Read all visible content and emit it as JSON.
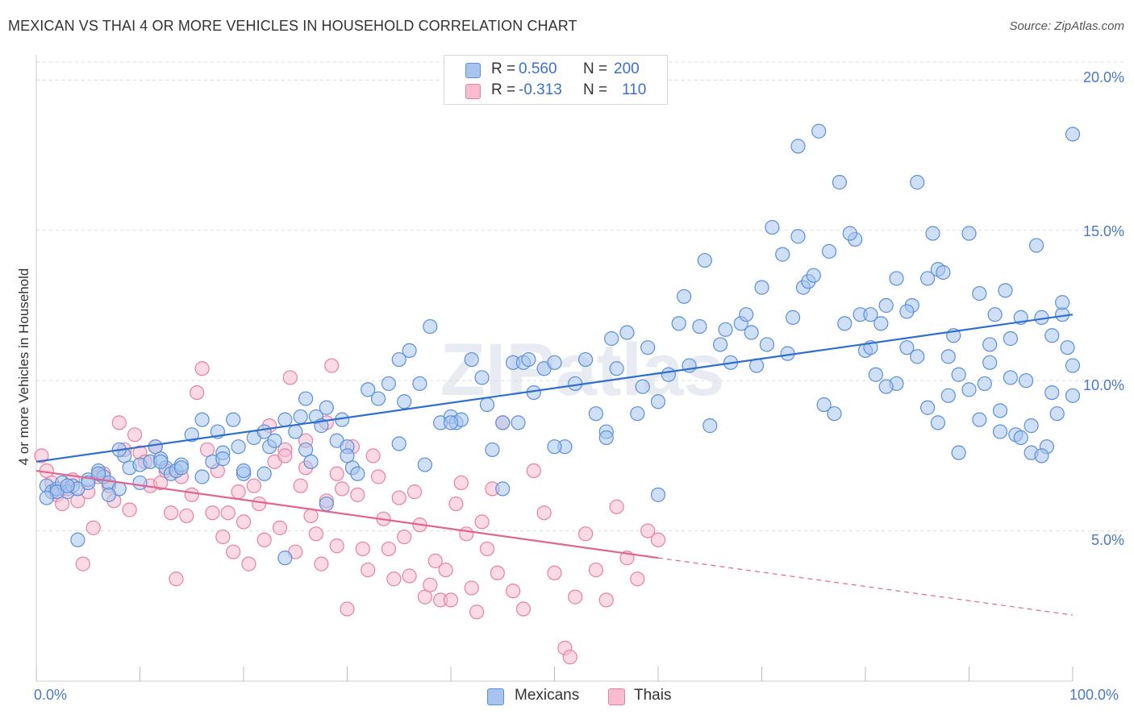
{
  "header": {
    "title": "MEXICAN VS THAI 4 OR MORE VEHICLES IN HOUSEHOLD CORRELATION CHART",
    "source": "Source: ZipAtlas.com"
  },
  "watermark": "ZIPatlas",
  "legend": {
    "rows": [
      {
        "r_label": "R =",
        "r_value": "0.560",
        "n_label": "N =",
        "n_value": "200"
      },
      {
        "r_label": "R =",
        "r_value": "-0.313",
        "n_label": "N =",
        "n_value": "110"
      }
    ]
  },
  "bottom_legend": {
    "items": [
      "Mexicans",
      "Thais"
    ]
  },
  "colors": {
    "mexicans_fill": "#a8c4ee",
    "mexicans_stroke": "#5b8fd8",
    "mexicans_line": "#2f6fcc",
    "thais_fill": "#f7bcd0",
    "thais_stroke": "#e87fa4",
    "thais_line": "#e0668f",
    "grid": "#dcdcdc",
    "tick_text": "#4a78c8"
  },
  "chart_data": {
    "type": "scatter",
    "title": "MEXICAN VS THAI 4 OR MORE VEHICLES IN HOUSEHOLD CORRELATION CHART",
    "xlabel": "",
    "ylabel": "4 or more Vehicles in Household",
    "xlim": [
      0,
      100
    ],
    "ylim": [
      0,
      20.6
    ],
    "x_tick_labels": [
      "0.0%",
      "100.0%"
    ],
    "y_ticks": [
      5,
      10,
      15,
      20
    ],
    "y_tick_labels": [
      "5.0%",
      "10.0%",
      "15.0%",
      "20.0%"
    ],
    "grid": true,
    "series": [
      {
        "name": "Mexicans",
        "R": 0.56,
        "N": 200,
        "trend": {
          "x0": 0,
          "y0": 7.3,
          "x1": 100,
          "y1": 12.2
        },
        "points": [
          [
            1,
            6.5
          ],
          [
            1.5,
            6.3
          ],
          [
            2,
            6.4
          ],
          [
            2.5,
            6.6
          ],
          [
            3,
            6.3
          ],
          [
            3.5,
            6.5
          ],
          [
            4,
            4.7
          ],
          [
            5,
            6.7
          ],
          [
            6,
            7
          ],
          [
            6.5,
            6.8
          ],
          [
            7,
            6.6
          ],
          [
            8,
            6.4
          ],
          [
            8.5,
            7.5
          ],
          [
            9,
            7.1
          ],
          [
            10,
            7.2
          ],
          [
            11,
            7.3
          ],
          [
            11.5,
            7.8
          ],
          [
            12,
            7.4
          ],
          [
            12.5,
            7.1
          ],
          [
            13,
            6.9
          ],
          [
            13.5,
            7
          ],
          [
            14,
            7.2
          ],
          [
            15,
            8.2
          ],
          [
            16,
            8.7
          ],
          [
            17,
            7.3
          ],
          [
            17.5,
            8.3
          ],
          [
            18,
            7.6
          ],
          [
            19,
            8.7
          ],
          [
            19.5,
            7.8
          ],
          [
            20,
            6.9
          ],
          [
            21,
            8.1
          ],
          [
            22,
            8.3
          ],
          [
            22.5,
            7.8
          ],
          [
            23,
            8
          ],
          [
            24,
            8.7
          ],
          [
            25,
            8.3
          ],
          [
            25.5,
            8.8
          ],
          [
            26,
            7.7
          ],
          [
            26.5,
            7.3
          ],
          [
            27,
            8.8
          ],
          [
            27.5,
            8.5
          ],
          [
            28,
            9.1
          ],
          [
            29,
            8
          ],
          [
            29.5,
            8.7
          ],
          [
            30,
            7.8
          ],
          [
            30.5,
            7.1
          ],
          [
            31,
            6.9
          ],
          [
            32,
            9.7
          ],
          [
            33,
            9.4
          ],
          [
            34,
            9.9
          ],
          [
            35,
            10.7
          ],
          [
            35.5,
            9.3
          ],
          [
            36,
            11
          ],
          [
            37,
            9.9
          ],
          [
            37.5,
            7.2
          ],
          [
            38,
            11.8
          ],
          [
            39,
            8.6
          ],
          [
            40,
            8.8
          ],
          [
            40.5,
            8.6
          ],
          [
            41,
            8.7
          ],
          [
            42,
            10.7
          ],
          [
            43,
            10.1
          ],
          [
            43.5,
            9.2
          ],
          [
            44,
            7.7
          ],
          [
            45,
            8.6
          ],
          [
            46,
            10.6
          ],
          [
            46.5,
            8.6
          ],
          [
            47,
            10.6
          ],
          [
            47.5,
            10.7
          ],
          [
            48,
            9.6
          ],
          [
            49,
            10.4
          ],
          [
            50,
            10.6
          ],
          [
            51,
            7.8
          ],
          [
            52,
            9.9
          ],
          [
            53,
            10.7
          ],
          [
            54,
            8.9
          ],
          [
            55,
            8.3
          ],
          [
            55.5,
            11.4
          ],
          [
            56,
            10.4
          ],
          [
            57,
            11.6
          ],
          [
            58,
            8.9
          ],
          [
            58.5,
            9.8
          ],
          [
            59,
            11.1
          ],
          [
            60,
            9.3
          ],
          [
            61,
            10.2
          ],
          [
            62,
            11.9
          ],
          [
            62.5,
            12.8
          ],
          [
            63,
            10.5
          ],
          [
            64,
            11.8
          ],
          [
            64.5,
            14
          ],
          [
            65,
            8.5
          ],
          [
            66,
            11.2
          ],
          [
            66.5,
            11.7
          ],
          [
            67,
            10.6
          ],
          [
            68,
            11.9
          ],
          [
            68.5,
            12.2
          ],
          [
            69,
            11.6
          ],
          [
            69.5,
            10.5
          ],
          [
            70,
            13.1
          ],
          [
            70.5,
            11.2
          ],
          [
            71,
            15.1
          ],
          [
            72,
            14.2
          ],
          [
            72.5,
            10.9
          ],
          [
            73,
            12.1
          ],
          [
            73.5,
            14.8
          ],
          [
            74,
            13.1
          ],
          [
            74.5,
            13.3
          ],
          [
            75,
            13.5
          ],
          [
            76,
            9.2
          ],
          [
            76.5,
            14.3
          ],
          [
            77,
            8.9
          ],
          [
            78,
            11.9
          ],
          [
            79,
            14.7
          ],
          [
            80,
            11
          ],
          [
            80.5,
            11.1
          ],
          [
            81,
            10.2
          ],
          [
            81.5,
            11.9
          ],
          [
            82,
            12.5
          ],
          [
            83,
            9.9
          ],
          [
            84,
            11.1
          ],
          [
            84.5,
            12.5
          ],
          [
            85,
            16.6
          ],
          [
            86,
            13.4
          ],
          [
            86.5,
            14.9
          ],
          [
            87,
            13.7
          ],
          [
            87.5,
            13.6
          ],
          [
            88,
            10.8
          ],
          [
            88.5,
            11.5
          ],
          [
            89,
            7.6
          ],
          [
            90,
            14.9
          ],
          [
            91,
            12.9
          ],
          [
            91.5,
            9.9
          ],
          [
            92,
            10.6
          ],
          [
            92.5,
            12.2
          ],
          [
            93,
            8.3
          ],
          [
            93.5,
            13
          ],
          [
            94,
            10.1
          ],
          [
            94.5,
            8.2
          ],
          [
            95,
            12.1
          ],
          [
            95.5,
            10
          ],
          [
            96,
            8.5
          ],
          [
            96.5,
            14.5
          ],
          [
            97,
            12.1
          ],
          [
            97.5,
            7.8
          ],
          [
            98,
            11.5
          ],
          [
            98.5,
            8.9
          ],
          [
            99,
            12.2
          ],
          [
            99.5,
            11.1
          ],
          [
            100,
            10.5
          ],
          [
            100,
            18.2
          ],
          [
            73.5,
            17.8
          ],
          [
            75.5,
            18.3
          ],
          [
            77.5,
            16.6
          ],
          [
            78.5,
            14.9
          ],
          [
            79.5,
            12.2
          ],
          [
            80.5,
            12.2
          ],
          [
            82,
            9.8
          ],
          [
            83,
            13.4
          ],
          [
            84,
            12.3
          ],
          [
            85,
            10.8
          ],
          [
            86,
            9.1
          ],
          [
            87,
            8.6
          ],
          [
            88,
            9.5
          ],
          [
            89,
            10.2
          ],
          [
            90,
            9.7
          ],
          [
            91,
            8.7
          ],
          [
            92,
            11.2
          ],
          [
            93,
            9
          ],
          [
            94,
            11.4
          ],
          [
            95,
            8.1
          ],
          [
            96,
            7.6
          ],
          [
            97,
            7.5
          ],
          [
            98,
            9.6
          ],
          [
            99,
            12.6
          ],
          [
            100,
            9.5
          ],
          [
            60,
            6.2
          ],
          [
            55,
            8.1
          ],
          [
            50,
            7.8
          ],
          [
            45,
            6.4
          ],
          [
            40,
            8.6
          ],
          [
            35,
            7.9
          ],
          [
            30,
            7.5
          ],
          [
            28,
            5.9
          ],
          [
            26,
            9.4
          ],
          [
            24,
            4.1
          ],
          [
            22,
            6.9
          ],
          [
            20,
            7
          ],
          [
            18,
            7.4
          ],
          [
            16,
            6.8
          ],
          [
            14,
            7.1
          ],
          [
            12,
            7.3
          ],
          [
            10,
            6.6
          ],
          [
            8,
            7.7
          ],
          [
            6,
            6.9
          ],
          [
            4,
            6.4
          ],
          [
            2,
            6.3
          ],
          [
            1,
            6.1
          ],
          [
            3,
            6.5
          ],
          [
            5,
            6.6
          ],
          [
            7,
            6.2
          ]
        ]
      },
      {
        "name": "Thais",
        "R": -0.313,
        "N": 110,
        "trend": {
          "x0": 0,
          "y0": 7.0,
          "x1": 60,
          "y1": 4.1,
          "dash_to_x": 100,
          "dash_to_y": 2.2
        },
        "points": [
          [
            0.5,
            7.5
          ],
          [
            1,
            7
          ],
          [
            1.5,
            6.6
          ],
          [
            2,
            6.2
          ],
          [
            2.5,
            5.9
          ],
          [
            3,
            6.4
          ],
          [
            3.5,
            6.7
          ],
          [
            4,
            6
          ],
          [
            4.5,
            3.9
          ],
          [
            5,
            6.3
          ],
          [
            5.5,
            5.1
          ],
          [
            6,
            6.8
          ],
          [
            6.5,
            6.9
          ],
          [
            7,
            6.5
          ],
          [
            7.5,
            6
          ],
          [
            8,
            8.6
          ],
          [
            8.5,
            7.7
          ],
          [
            9,
            5.7
          ],
          [
            9.5,
            8.2
          ],
          [
            10,
            7.6
          ],
          [
            10.5,
            7.3
          ],
          [
            11,
            6.5
          ],
          [
            11.5,
            7.8
          ],
          [
            12,
            6.6
          ],
          [
            12.5,
            7
          ],
          [
            13,
            5.6
          ],
          [
            13.5,
            3.4
          ],
          [
            14,
            6.8
          ],
          [
            14.5,
            5.5
          ],
          [
            15,
            6.2
          ],
          [
            15.5,
            9.6
          ],
          [
            16,
            10.4
          ],
          [
            16.5,
            7.7
          ],
          [
            17,
            5.6
          ],
          [
            17.5,
            7
          ],
          [
            18,
            4.8
          ],
          [
            18.5,
            5.6
          ],
          [
            19,
            4.3
          ],
          [
            19.5,
            6.3
          ],
          [
            20,
            5.3
          ],
          [
            20.5,
            3.9
          ],
          [
            21,
            6.5
          ],
          [
            21.5,
            5.9
          ],
          [
            22,
            4.7
          ],
          [
            22.5,
            8.5
          ],
          [
            23,
            7.3
          ],
          [
            23.5,
            5.1
          ],
          [
            24,
            7.7
          ],
          [
            24.5,
            10.1
          ],
          [
            25,
            4.3
          ],
          [
            25.5,
            6.5
          ],
          [
            26,
            7.1
          ],
          [
            26.5,
            5.5
          ],
          [
            27,
            4.9
          ],
          [
            27.5,
            3.9
          ],
          [
            28,
            8.6
          ],
          [
            28.5,
            10.5
          ],
          [
            29,
            4.5
          ],
          [
            29.5,
            6.4
          ],
          [
            30,
            2.4
          ],
          [
            30.5,
            7.8
          ],
          [
            31,
            6.2
          ],
          [
            31.5,
            4.4
          ],
          [
            32,
            3.7
          ],
          [
            32.5,
            7.5
          ],
          [
            33,
            6.8
          ],
          [
            33.5,
            5.4
          ],
          [
            34,
            4.4
          ],
          [
            34.5,
            3.4
          ],
          [
            35,
            6.1
          ],
          [
            35.5,
            4.8
          ],
          [
            36,
            3.5
          ],
          [
            36.5,
            6.3
          ],
          [
            37,
            5.2
          ],
          [
            37.5,
            2.8
          ],
          [
            38,
            3.2
          ],
          [
            38.5,
            4
          ],
          [
            39,
            2.7
          ],
          [
            39.5,
            3.7
          ],
          [
            40,
            2.7
          ],
          [
            40.5,
            5.9
          ],
          [
            41,
            6.6
          ],
          [
            41.5,
            4.9
          ],
          [
            42,
            3.1
          ],
          [
            42.5,
            2.3
          ],
          [
            43,
            5.3
          ],
          [
            43.5,
            4.4
          ],
          [
            44,
            6.4
          ],
          [
            44.5,
            3.6
          ],
          [
            45,
            8.6
          ],
          [
            46,
            3
          ],
          [
            47,
            2.4
          ],
          [
            48,
            7
          ],
          [
            49,
            5.6
          ],
          [
            50,
            3.6
          ],
          [
            51,
            1.1
          ],
          [
            51.5,
            0.8
          ],
          [
            52,
            2.8
          ],
          [
            53,
            4.9
          ],
          [
            54,
            3.7
          ],
          [
            55,
            2.7
          ],
          [
            56,
            5.8
          ],
          [
            57,
            4.1
          ],
          [
            58,
            3.4
          ],
          [
            59,
            5
          ],
          [
            60,
            4.7
          ],
          [
            28,
            6
          ],
          [
            26,
            8
          ],
          [
            24,
            7.5
          ],
          [
            29,
            6.9
          ]
        ]
      }
    ]
  }
}
